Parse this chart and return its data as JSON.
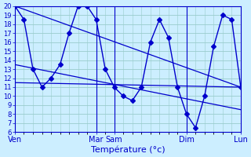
{
  "title": "Température (°c)",
  "bg_color": "#cceeff",
  "line_color": "#0000cc",
  "grid_color": "#99cccc",
  "ylim": [
    6,
    20
  ],
  "yticks": [
    6,
    7,
    8,
    9,
    10,
    11,
    12,
    13,
    14,
    15,
    16,
    17,
    18,
    19,
    20
  ],
  "day_labels": [
    "Ven",
    "Mar",
    "Sam",
    "Dim",
    "Lun"
  ],
  "day_positions": [
    0,
    9,
    11,
    19,
    25
  ],
  "xlim": [
    0,
    25
  ],
  "vlines": [
    9,
    11,
    19
  ],
  "series1_x": [
    0,
    1,
    2,
    3,
    4,
    5,
    6,
    7,
    8,
    9,
    10,
    11,
    12,
    13,
    14,
    15,
    16,
    17,
    18,
    19,
    20,
    21,
    22,
    23,
    24,
    25
  ],
  "series1_y": [
    20,
    18.5,
    13,
    11,
    12,
    13.5,
    17,
    20,
    20,
    18.5,
    13,
    11,
    10,
    9.5,
    11,
    16,
    18.5,
    16.5,
    11,
    8,
    6.5,
    10,
    15.5,
    19,
    18.5,
    11
  ],
  "series2_x": [
    0,
    25
  ],
  "series2_y": [
    11.5,
    11
  ],
  "series3_x": [
    0,
    25
  ],
  "series3_y": [
    13.5,
    8.5
  ],
  "series4_x": [
    0,
    25
  ],
  "series4_y": [
    20,
    11
  ]
}
